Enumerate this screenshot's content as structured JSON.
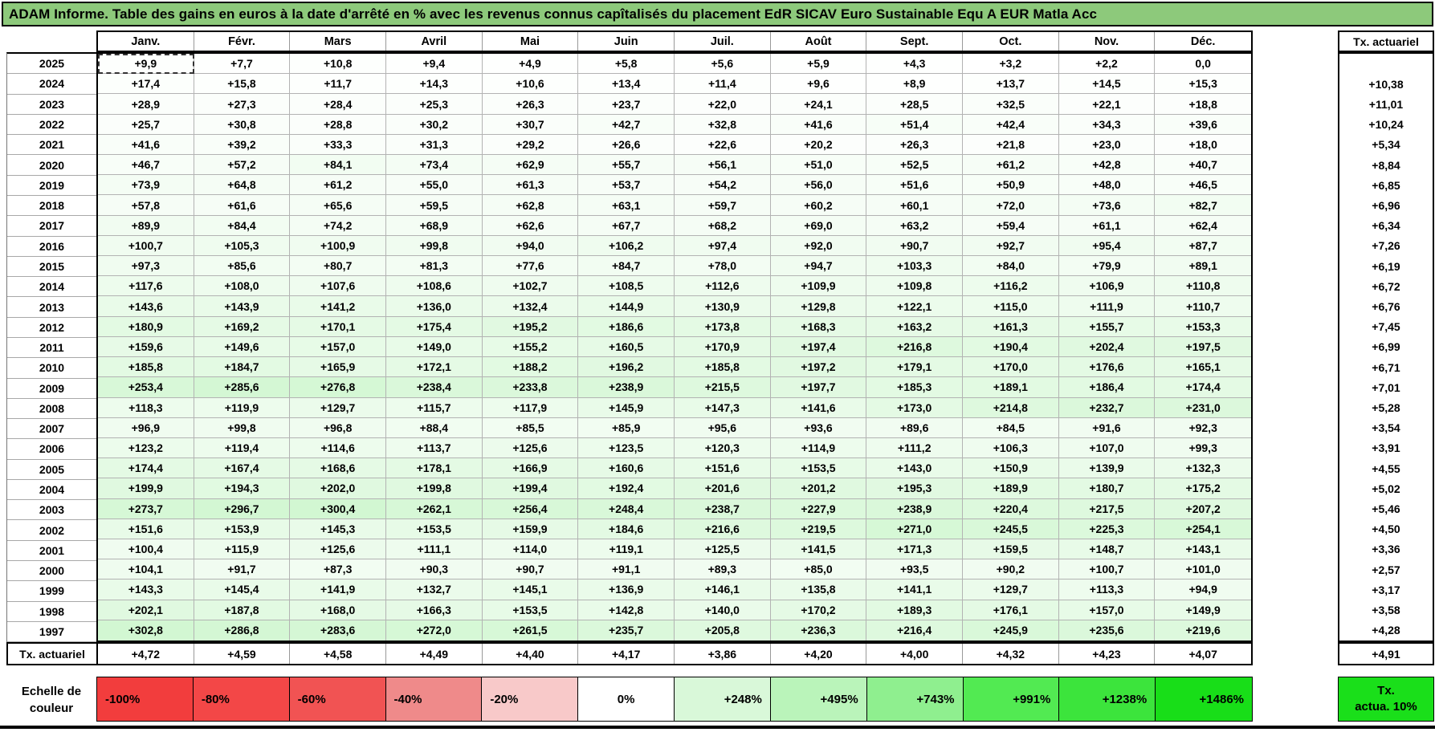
{
  "title": "ADAM Informe. Table des gains en euros à la date d'arrêté en % avec les revenus connus capîtalisés du placement EdR SICAV Euro Sustainable Equ A EUR Matla Acc",
  "table": {
    "month_headers": [
      "Janv.",
      "Févr.",
      "Mars",
      "Avril",
      "Mai",
      "Juin",
      "Juil.",
      "Août",
      "Sept.",
      "Oct.",
      "Nov.",
      "Déc."
    ],
    "tx_header": "Tx. actuariel",
    "footer_label": "Tx. actuariel"
  },
  "selection": {
    "year": 2025,
    "month_index": 0
  },
  "legend": {
    "label_lines": [
      "Echelle de",
      "couleur"
    ],
    "stops": [
      {
        "label": "-100%",
        "color": "#F23D3D",
        "align": "left"
      },
      {
        "label": "-80%",
        "color": "#F34747",
        "align": "left"
      },
      {
        "label": "-60%",
        "color": "#F15353",
        "align": "left"
      },
      {
        "label": "-40%",
        "color": "#EF8A8A",
        "align": "left"
      },
      {
        "label": "-20%",
        "color": "#F8C9C9",
        "align": "left"
      },
      {
        "label": "0%",
        "color": "#FFFFFF",
        "align": "center"
      },
      {
        "label": "+248%",
        "color": "#D9F8D9",
        "align": "right"
      },
      {
        "label": "+495%",
        "color": "#BAF4BA",
        "align": "right"
      },
      {
        "label": "+743%",
        "color": "#8FEF8F",
        "align": "right"
      },
      {
        "label": "+991%",
        "color": "#52EA52",
        "align": "right"
      },
      {
        "label": "+1238%",
        "color": "#3CE43C",
        "align": "right"
      },
      {
        "label": "+1486%",
        "color": "#18DE18",
        "align": "right"
      }
    ],
    "tx_box": {
      "lines": [
        "Tx.",
        "actua. 10%"
      ],
      "color": "#1ADF1A"
    }
  },
  "chart_data": {
    "type": "heatmap",
    "title": "ADAM Informe. Table des gains en euros à la date d'arrêté en % avec les revenus connus capîtalisés du placement EdR SICAV Euro Sustainable Equ A EUR Matla Acc",
    "columns": [
      "Janv.",
      "Févr.",
      "Mars",
      "Avril",
      "Mai",
      "Juin",
      "Juil.",
      "Août",
      "Sept.",
      "Oct.",
      "Nov.",
      "Déc."
    ],
    "rows": [
      2025,
      2024,
      2023,
      2022,
      2021,
      2020,
      2019,
      2018,
      2017,
      2016,
      2015,
      2014,
      2013,
      2012,
      2011,
      2010,
      2009,
      2008,
      2007,
      2006,
      2005,
      2004,
      2003,
      2002,
      2001,
      2000,
      1999,
      1998,
      1997
    ],
    "values": [
      [
        9.9,
        7.7,
        10.8,
        9.4,
        4.9,
        5.8,
        5.6,
        5.9,
        4.3,
        3.2,
        2.2,
        0.0
      ],
      [
        17.4,
        15.8,
        11.7,
        14.3,
        10.6,
        13.4,
        11.4,
        9.6,
        8.9,
        13.7,
        14.5,
        15.3
      ],
      [
        28.9,
        27.3,
        28.4,
        25.3,
        26.3,
        23.7,
        22.0,
        24.1,
        28.5,
        32.5,
        22.1,
        18.8
      ],
      [
        25.7,
        30.8,
        28.8,
        30.2,
        30.7,
        42.7,
        32.8,
        41.6,
        51.4,
        42.4,
        34.3,
        39.6
      ],
      [
        41.6,
        39.2,
        33.3,
        31.3,
        29.2,
        26.6,
        22.6,
        20.2,
        26.3,
        21.8,
        23.0,
        18.0
      ],
      [
        46.7,
        57.2,
        84.1,
        73.4,
        62.9,
        55.7,
        56.1,
        51.0,
        52.5,
        61.2,
        42.8,
        40.7
      ],
      [
        73.9,
        64.8,
        61.2,
        55.0,
        61.3,
        53.7,
        54.2,
        56.0,
        51.6,
        50.9,
        48.0,
        46.5
      ],
      [
        57.8,
        61.6,
        65.6,
        59.5,
        62.8,
        63.1,
        59.7,
        60.2,
        60.1,
        72.0,
        73.6,
        82.7
      ],
      [
        89.9,
        84.4,
        74.2,
        68.9,
        62.6,
        67.7,
        68.2,
        69.0,
        63.2,
        59.4,
        61.1,
        62.4
      ],
      [
        100.7,
        105.3,
        100.9,
        99.8,
        94.0,
        106.2,
        97.4,
        92.0,
        90.7,
        92.7,
        95.4,
        87.7
      ],
      [
        97.3,
        85.6,
        80.7,
        81.3,
        77.6,
        84.7,
        78.0,
        94.7,
        103.3,
        84.0,
        79.9,
        89.1
      ],
      [
        117.6,
        108.0,
        107.6,
        108.6,
        102.7,
        108.5,
        112.6,
        109.9,
        109.8,
        116.2,
        106.9,
        110.8
      ],
      [
        143.6,
        143.9,
        141.2,
        136.0,
        132.4,
        144.9,
        130.9,
        129.8,
        122.1,
        115.0,
        111.9,
        110.7
      ],
      [
        180.9,
        169.2,
        170.1,
        175.4,
        195.2,
        186.6,
        173.8,
        168.3,
        163.2,
        161.3,
        155.7,
        153.3
      ],
      [
        159.6,
        149.6,
        157.0,
        149.0,
        155.2,
        160.5,
        170.9,
        197.4,
        216.8,
        190.4,
        202.4,
        197.5
      ],
      [
        185.8,
        184.7,
        165.9,
        172.1,
        188.2,
        196.2,
        185.8,
        197.2,
        179.1,
        170.0,
        176.6,
        165.1
      ],
      [
        253.4,
        285.6,
        276.8,
        238.4,
        233.8,
        238.9,
        215.5,
        197.7,
        185.3,
        189.1,
        186.4,
        174.4
      ],
      [
        118.3,
        119.9,
        129.7,
        115.7,
        117.9,
        145.9,
        147.3,
        141.6,
        173.0,
        214.8,
        232.7,
        231.0
      ],
      [
        96.9,
        99.8,
        96.8,
        88.4,
        85.5,
        85.9,
        95.6,
        93.6,
        89.6,
        84.5,
        91.6,
        92.3
      ],
      [
        123.2,
        119.4,
        114.6,
        113.7,
        125.6,
        123.5,
        120.3,
        114.9,
        111.2,
        106.3,
        107.0,
        99.3
      ],
      [
        174.4,
        167.4,
        168.6,
        178.1,
        166.9,
        160.6,
        151.6,
        153.5,
        143.0,
        150.9,
        139.9,
        132.3
      ],
      [
        199.9,
        194.3,
        202.0,
        199.8,
        199.4,
        192.4,
        201.6,
        201.2,
        195.3,
        189.9,
        180.7,
        175.2
      ],
      [
        273.7,
        296.7,
        300.4,
        262.1,
        256.4,
        248.4,
        238.7,
        227.9,
        238.9,
        220.4,
        217.5,
        207.2
      ],
      [
        151.6,
        153.9,
        145.3,
        153.5,
        159.9,
        184.6,
        216.6,
        219.5,
        271.0,
        245.5,
        225.3,
        254.1
      ],
      [
        100.4,
        115.9,
        125.6,
        111.1,
        114.0,
        119.1,
        125.5,
        141.5,
        171.3,
        159.5,
        148.7,
        143.1
      ],
      [
        104.1,
        91.7,
        87.3,
        90.3,
        90.7,
        91.1,
        89.3,
        85.0,
        93.5,
        90.2,
        100.7,
        101.0
      ],
      [
        143.3,
        145.4,
        141.9,
        132.7,
        145.1,
        136.9,
        146.1,
        135.8,
        141.1,
        129.7,
        113.3,
        94.9
      ],
      [
        202.1,
        187.8,
        168.0,
        166.3,
        153.5,
        142.8,
        140.0,
        170.2,
        189.3,
        176.1,
        157.0,
        149.9
      ],
      [
        302.8,
        286.8,
        283.6,
        272.0,
        261.5,
        235.7,
        205.8,
        236.3,
        216.4,
        245.9,
        235.6,
        219.6
      ]
    ],
    "tx_actuariel_by_year": [
      null,
      10.38,
      11.01,
      10.24,
      5.34,
      8.84,
      6.85,
      6.96,
      6.34,
      7.26,
      6.19,
      6.72,
      6.76,
      7.45,
      6.99,
      6.71,
      7.01,
      5.28,
      3.54,
      3.91,
      4.55,
      5.02,
      5.46,
      4.5,
      3.36,
      2.57,
      3.17,
      3.58,
      4.28
    ],
    "tx_actuariel_by_month": [
      4.72,
      4.59,
      4.58,
      4.49,
      4.4,
      4.17,
      3.86,
      4.2,
      4.0,
      4.32,
      4.23,
      4.07
    ],
    "tx_actuariel_overall": 4.91,
    "positive_color_scale": [
      {
        "value": 0,
        "color": "#FFFFFF"
      },
      {
        "value": 248,
        "color": "#D9F8D9"
      },
      {
        "value": 495,
        "color": "#BAF4BA"
      },
      {
        "value": 743,
        "color": "#8FEF8F"
      },
      {
        "value": 991,
        "color": "#52EA52"
      },
      {
        "value": 1238,
        "color": "#3CE43C"
      },
      {
        "value": 1486,
        "color": "#18DE18"
      }
    ]
  }
}
